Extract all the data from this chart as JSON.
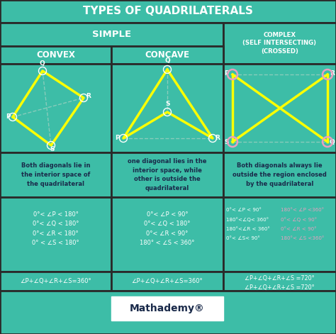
{
  "title": "TYPES OF QUADRILATERALS",
  "bg_color": "#3dbda7",
  "dark_bg": "#2a2a2a",
  "text_white": "#ffffff",
  "text_dark": "#1a2a4a",
  "yellow": "#ffff00",
  "pink": "#e8a0c0",
  "col1_header": "SIMPLE",
  "col2_header": "COMPLEX\n(SELF INTERSECTING)\n(CROSSED)",
  "sub1": "CONVEX",
  "sub2": "CONCAVE",
  "desc1": "Both diagonals lie in\nthe interior space of\nthe quadrilateral",
  "desc2": "one diagonal lies in the\ninterior space, while\nother is outside the\nquadrilateral",
  "desc3": "Both diagonals always lie\noutside the region enclosed\nby the quadrilateral",
  "angles1_lines": [
    "0°< ∠P < 180°",
    "0°< ∠Q < 180°",
    "0°< ∠R < 180°",
    "0° < ∠S < 180°"
  ],
  "angles2_lines": [
    "0°< ∠P < 90°",
    "0°< ∠Q < 180°",
    "0°< ∠R < 90°",
    "180° < ∠S < 360°"
  ],
  "angles3a_lines": [
    "0°< ∠P < 90°",
    "180°<∠Q< 360°",
    "180°<∠R < 360°",
    "0°< ∠S< 90°"
  ],
  "angles3b_lines": [
    "180°< ∠P <360°",
    "0°< ∠Q < 90°",
    "0°< ∠R < 90°",
    "180°< ∠S <360°"
  ],
  "sum1": "∠P+∠Q+∠R+∠S=360°",
  "sum2": "∠P+∠Q+∠R+∠S=360°",
  "sum3a": "∠P+∠Q+∠R+∠S =720°",
  "sum3b": "∠P+∠Q+∠R+∠S =720°",
  "footer": "Mathademy®"
}
